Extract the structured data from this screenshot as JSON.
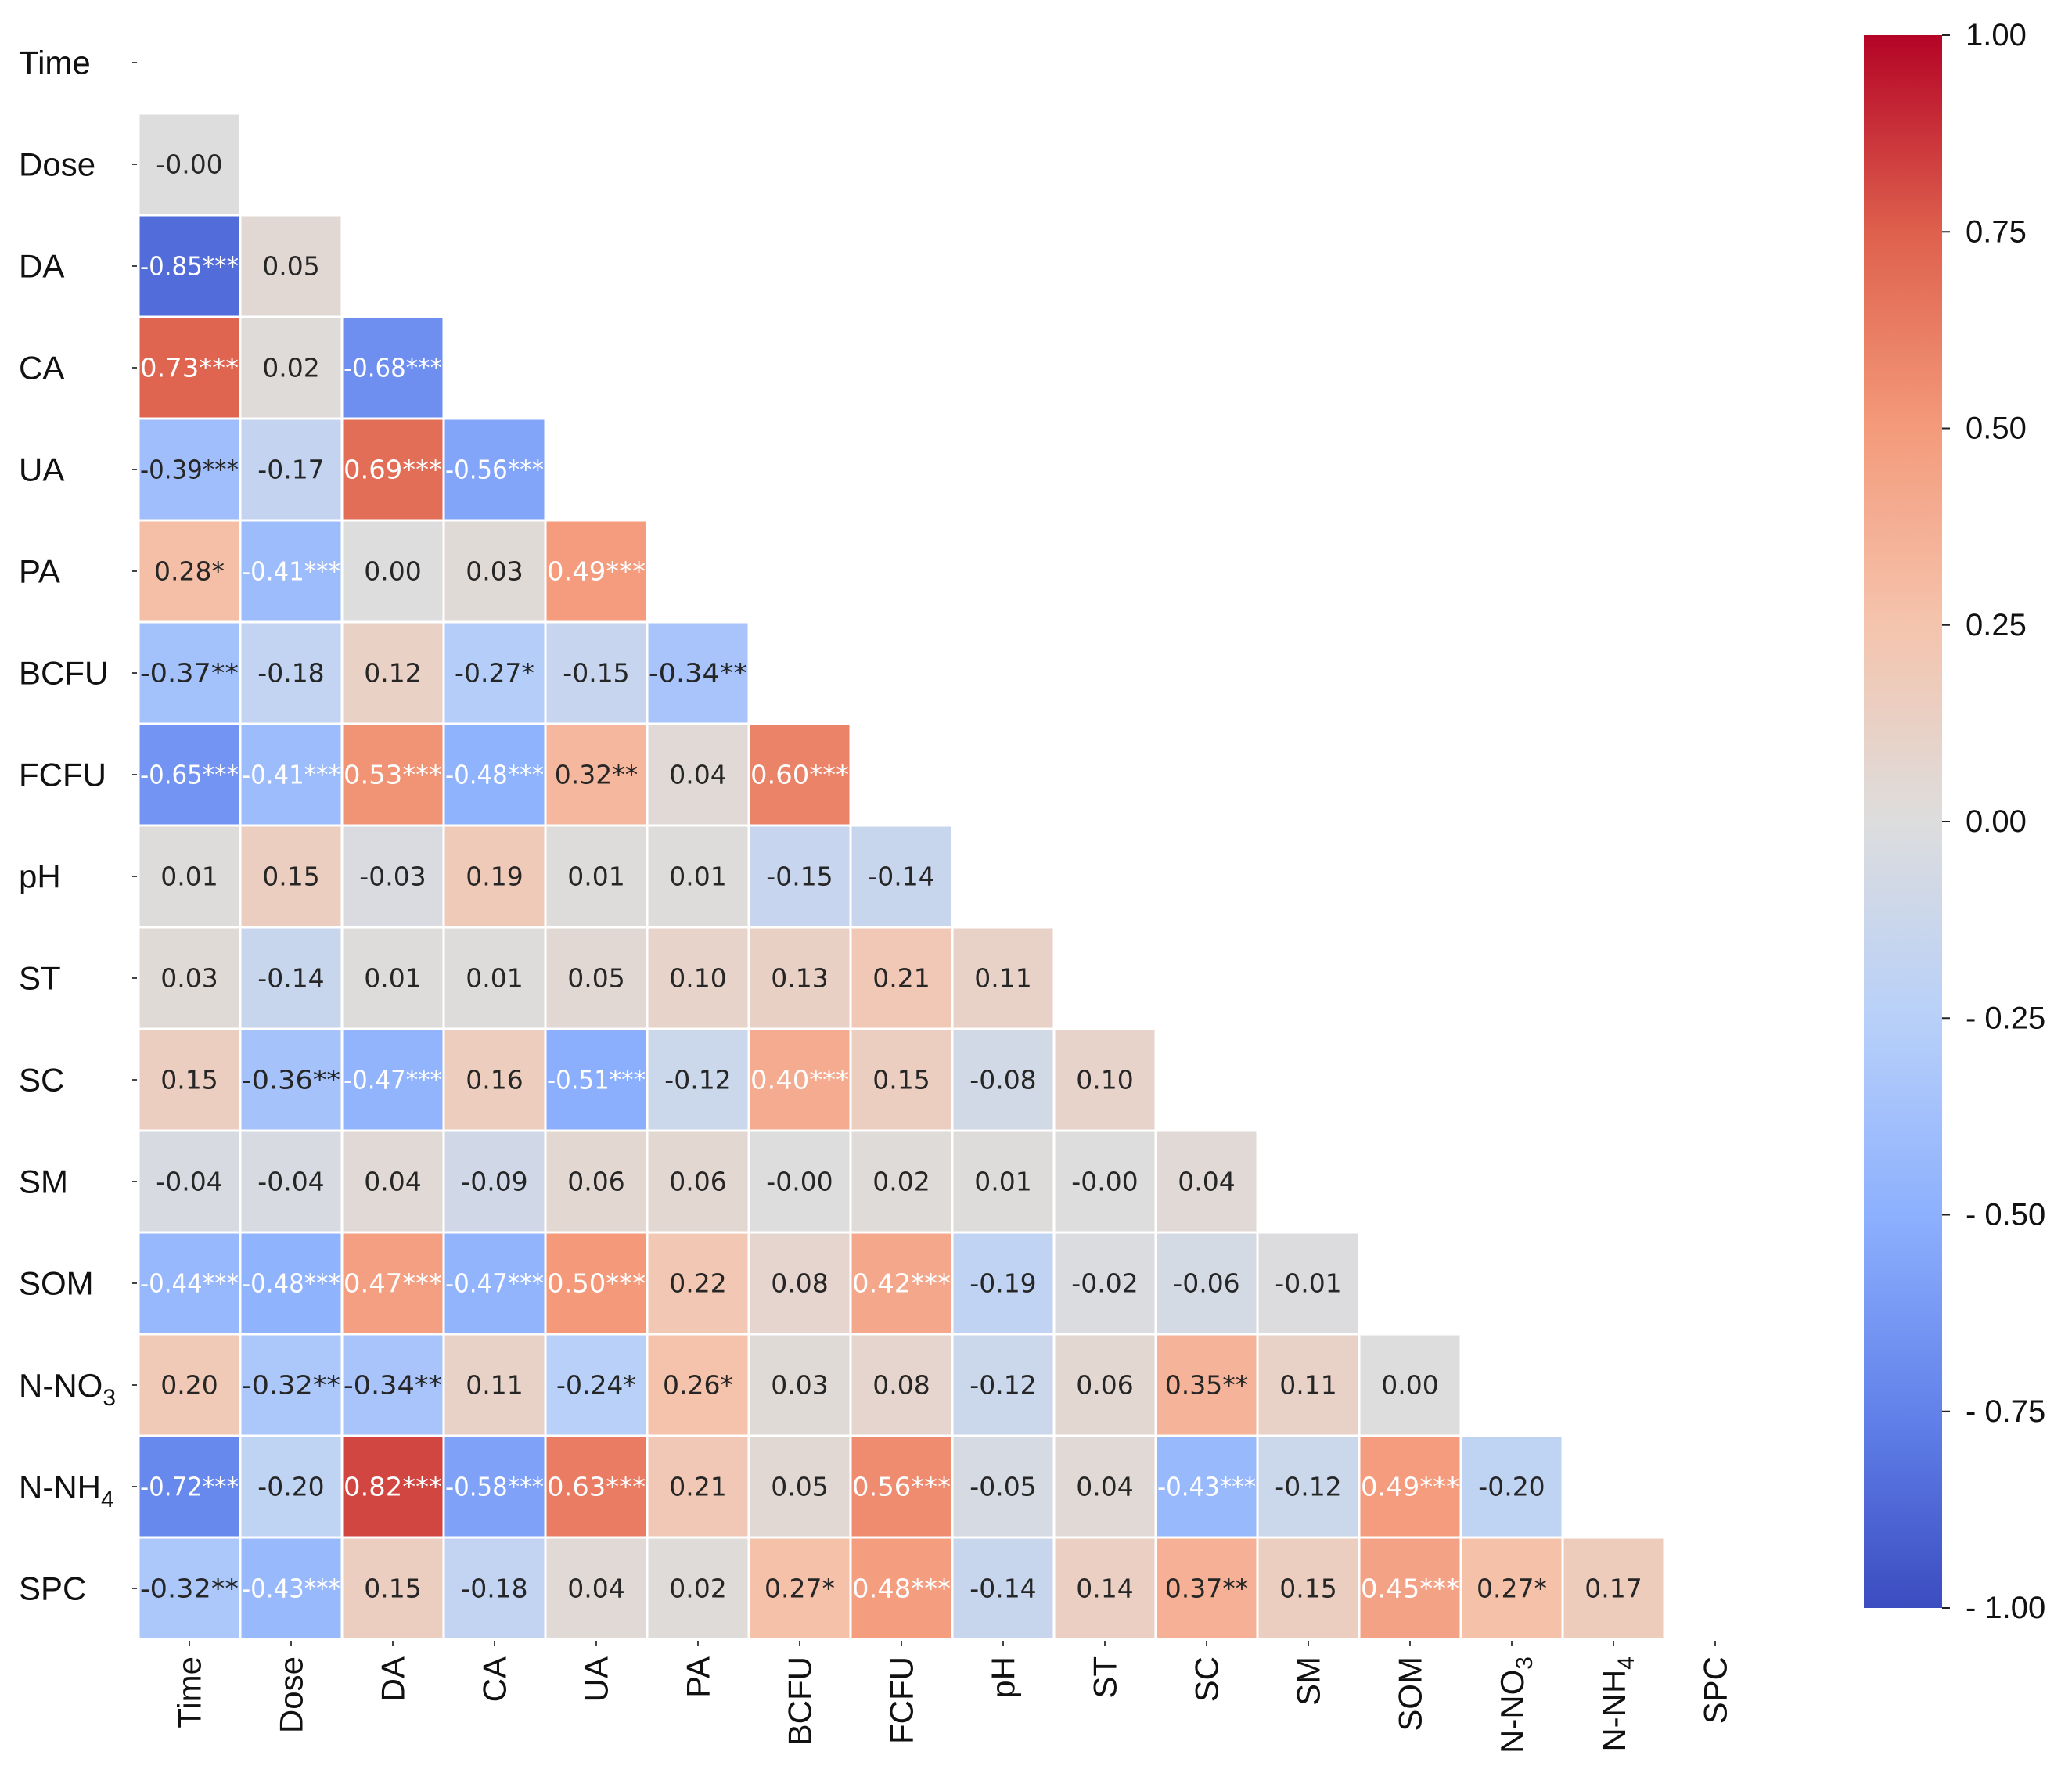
{
  "chart_data": {
    "type": "heatmap",
    "subtype": "lower-triangle correlation matrix",
    "variables": [
      "Time",
      "Dose",
      "DA",
      "CA",
      "UA",
      "PA",
      "BCFU",
      "FCFU",
      "pH",
      "ST",
      "SC",
      "SM",
      "SOM",
      "N-NO3",
      "N-NH4",
      "SPC"
    ],
    "label_parts": {
      "N-NO3": {
        "base": "N-NO",
        "sub": "3"
      },
      "N-NH4": {
        "base": "N-NH",
        "sub": "4"
      }
    },
    "matrix": [
      [],
      [
        "-0.00"
      ],
      [
        "-0.85***",
        "0.05"
      ],
      [
        "0.73***",
        "0.02",
        "-0.68***"
      ],
      [
        "-0.39***",
        "-0.17",
        "0.69***",
        "-0.56***"
      ],
      [
        "0.28*",
        "-0.41***",
        "0.00",
        "0.03",
        "0.49***"
      ],
      [
        "-0.37**",
        "-0.18",
        "0.12",
        "-0.27*",
        "-0.15",
        "-0.34**"
      ],
      [
        "-0.65***",
        "-0.41***",
        "0.53***",
        "-0.48***",
        "0.32**",
        "0.04",
        "0.60***"
      ],
      [
        "0.01",
        "0.15",
        "-0.03",
        "0.19",
        "0.01",
        "0.01",
        "-0.15",
        "-0.14"
      ],
      [
        "0.03",
        "-0.14",
        "0.01",
        "0.01",
        "0.05",
        "0.10",
        "0.13",
        "0.21",
        "0.11"
      ],
      [
        "0.15",
        "-0.36**",
        "-0.47***",
        "0.16",
        "-0.51***",
        "-0.12",
        "0.40***",
        "0.15",
        "-0.08",
        "0.10"
      ],
      [
        "-0.04",
        "-0.04",
        "0.04",
        "-0.09",
        "0.06",
        "0.06",
        "-0.00",
        "0.02",
        "0.01",
        "-0.00",
        "0.04"
      ],
      [
        "-0.44***",
        "-0.48***",
        "0.47***",
        "-0.47***",
        "0.50***",
        "0.22",
        "0.08",
        "0.42***",
        "-0.19",
        "-0.02",
        "-0.06",
        "-0.01"
      ],
      [
        "0.20",
        "-0.32**",
        "-0.34**",
        "0.11",
        "-0.24*",
        "0.26*",
        "0.03",
        "0.08",
        "-0.12",
        "0.06",
        "0.35**",
        "0.11",
        "0.00"
      ],
      [
        "-0.72***",
        "-0.20",
        "0.82***",
        "-0.58***",
        "0.63***",
        "0.21",
        "0.05",
        "0.56***",
        "-0.05",
        "0.04",
        "-0.43***",
        "-0.12",
        "0.49***",
        "-0.20"
      ],
      [
        "-0.32**",
        "-0.43***",
        "0.15",
        "-0.18",
        "0.04",
        "0.02",
        "0.27*",
        "0.48***",
        "-0.14",
        "0.14",
        "0.37**",
        "0.15",
        "0.45***",
        "0.27*",
        "0.17"
      ]
    ],
    "colorbar": {
      "min": -1.0,
      "max": 1.0,
      "colormap": "coolwarm",
      "ticks": [
        1.0,
        0.75,
        0.5,
        0.25,
        0.0,
        -0.25,
        -0.5,
        -0.75,
        -1.0
      ],
      "tick_labels": [
        "1.00",
        "0.75",
        "0.50",
        "0.25",
        "0.00",
        "- 0.25",
        "- 0.50",
        "- 0.75",
        "- 1.00"
      ]
    }
  }
}
